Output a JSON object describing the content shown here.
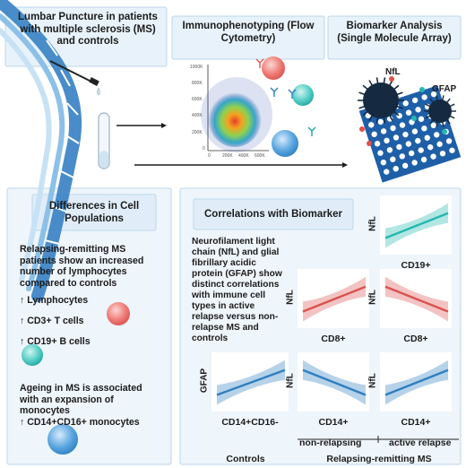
{
  "top": {
    "lumbar_title": "Lumbar Puncture in patients with multiple sclerosis (MS) and controls",
    "flow_title": "Immunophenotyping (Flow Cytometry)",
    "biomarker_title": "Biomarker Analysis (Single Molecule Array)",
    "nfl_label": "NfL",
    "gfap_label": "GFAP",
    "flow_y_ticks": [
      "1000K",
      "800K",
      "600K",
      "400K",
      "200K",
      "0"
    ],
    "flow_x_ticks": [
      "0",
      "200K",
      "400K",
      "600K"
    ]
  },
  "left": {
    "title": "Differences in Cell Populations",
    "rrms_text": "Relapsing-remitting MS patients show an increased number of lymphocytes compared to controls",
    "items": [
      "↑ Lymphocytes",
      "↑ CD3+ T cells",
      "↑ CD19+ B cells"
    ],
    "ageing_text": "Ageing in MS is associated with an expansion of monocytes",
    "monocyte_item": "↑ CD14+CD16+ monocytes"
  },
  "right": {
    "title": "Correlations with Biomarker",
    "description": "Neurofilament light chain (NfL) and glial fibrillary acidic protein (GFAP) show distinct correlations with immune cell types in active relapse versus non-relapse MS and controls",
    "plots": [
      {
        "ylabel": "NfL",
        "xlabel": "CD19+",
        "trend": "positive",
        "color": "#22b8b0"
      },
      {
        "ylabel": "NfL",
        "xlabel": "CD8+",
        "trend": "positive",
        "color": "#d9534f"
      },
      {
        "ylabel": "NfL",
        "xlabel": "CD8+",
        "trend": "negative",
        "color": "#d9534f"
      },
      {
        "ylabel": "GFAP",
        "xlabel": "CD14+CD16-",
        "trend": "positive",
        "color": "#2f7fc0"
      },
      {
        "ylabel": "NfL",
        "xlabel": "CD14+",
        "trend": "negative",
        "color": "#2f7fc0"
      },
      {
        "ylabel": "NfL",
        "xlabel": "CD14+",
        "trend": "positive",
        "color": "#2f7fc0"
      }
    ],
    "non_relapsing": "non-relapsing",
    "active_relapse": "active relapse",
    "controls": "Controls",
    "rrms_group": "Relapsing-remitting MS"
  },
  "colors": {
    "panel_bg": "#e8f2fa",
    "panel_border": "#bcd6ec",
    "spine": "#3f86c6",
    "teal": "#22b8b0",
    "red": "#e0504c",
    "blue": "#2f7fc0"
  }
}
